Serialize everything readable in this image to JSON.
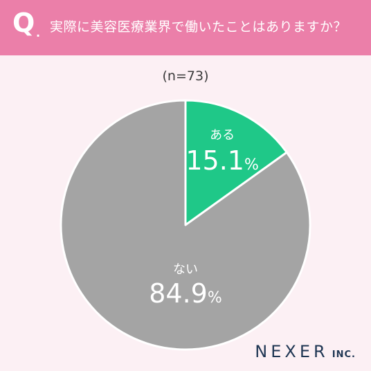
{
  "header": {
    "q_mark": "Q",
    "q_dot": ".",
    "question": "実際に美容医療業界で働いたことはありますか？",
    "background": "#eb7fa9"
  },
  "sample_label": "(n=73)",
  "chart_data": {
    "type": "pie",
    "title": "実際に美容医療業界で働いたことはありますか？",
    "start_angle": "12 o'clock, clockwise",
    "slices": [
      {
        "label": "ある",
        "value": 15.1,
        "value_label": "15.1",
        "unit": "%",
        "color": "#1fc888"
      },
      {
        "label": "ない",
        "value": 84.9,
        "value_label": "84.9",
        "unit": "%",
        "color": "#a4a4a4"
      }
    ]
  },
  "logo": {
    "main": "NEXER",
    "sub": "INC."
  }
}
